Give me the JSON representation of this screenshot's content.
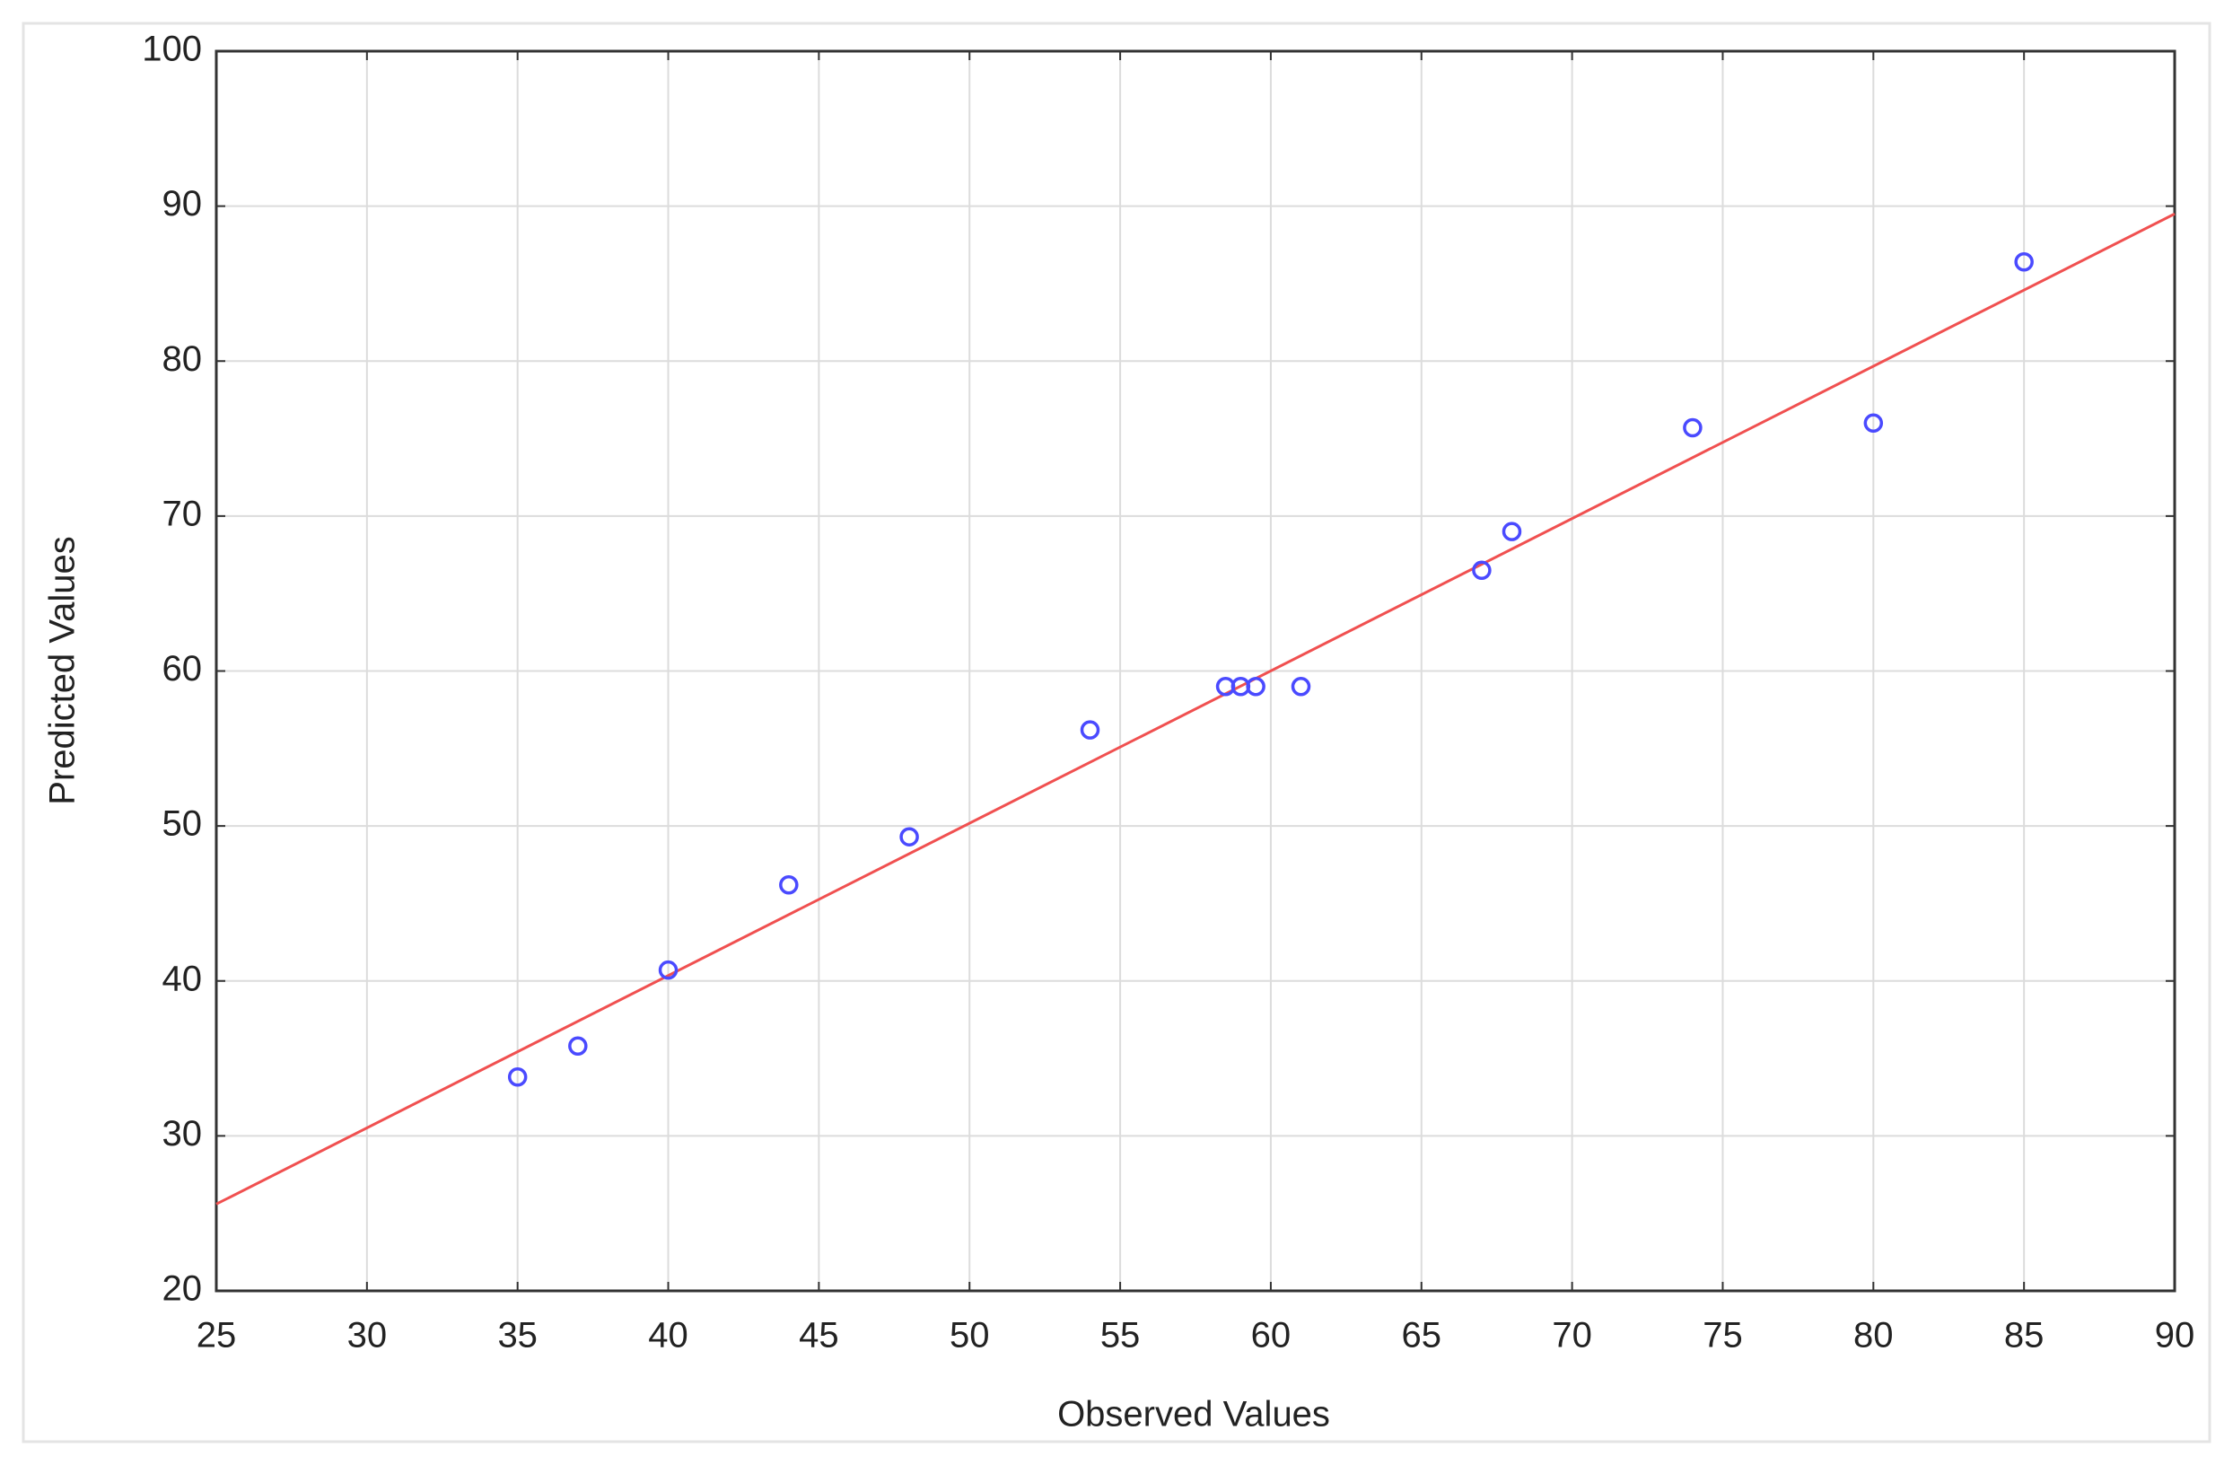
{
  "chart_data": {
    "type": "scatter",
    "x_label": "Observed Values",
    "y_label": "Predicted Values",
    "x": [
      35,
      37,
      40,
      44,
      48,
      54,
      58.5,
      59,
      59.5,
      61,
      67,
      68,
      74,
      80,
      85
    ],
    "values": [
      33.8,
      35.8,
      40.7,
      46.2,
      49.3,
      56.2,
      59,
      59,
      59,
      59,
      66.5,
      69,
      75.7,
      76,
      86.4
    ],
    "color": "#4a4aff",
    "fit_line": {
      "x": [
        25,
        90
      ],
      "values": [
        25.6,
        89.5
      ],
      "color": "#f05050"
    },
    "xlim": [
      25,
      90
    ],
    "xticks": [
      25,
      30,
      35,
      40,
      45,
      50,
      55,
      60,
      65,
      70,
      75,
      80,
      85,
      90
    ],
    "ylim": [
      20,
      100
    ],
    "yticks": [
      20,
      30,
      40,
      50,
      60,
      70,
      80,
      90,
      100
    ],
    "grid": true
  }
}
